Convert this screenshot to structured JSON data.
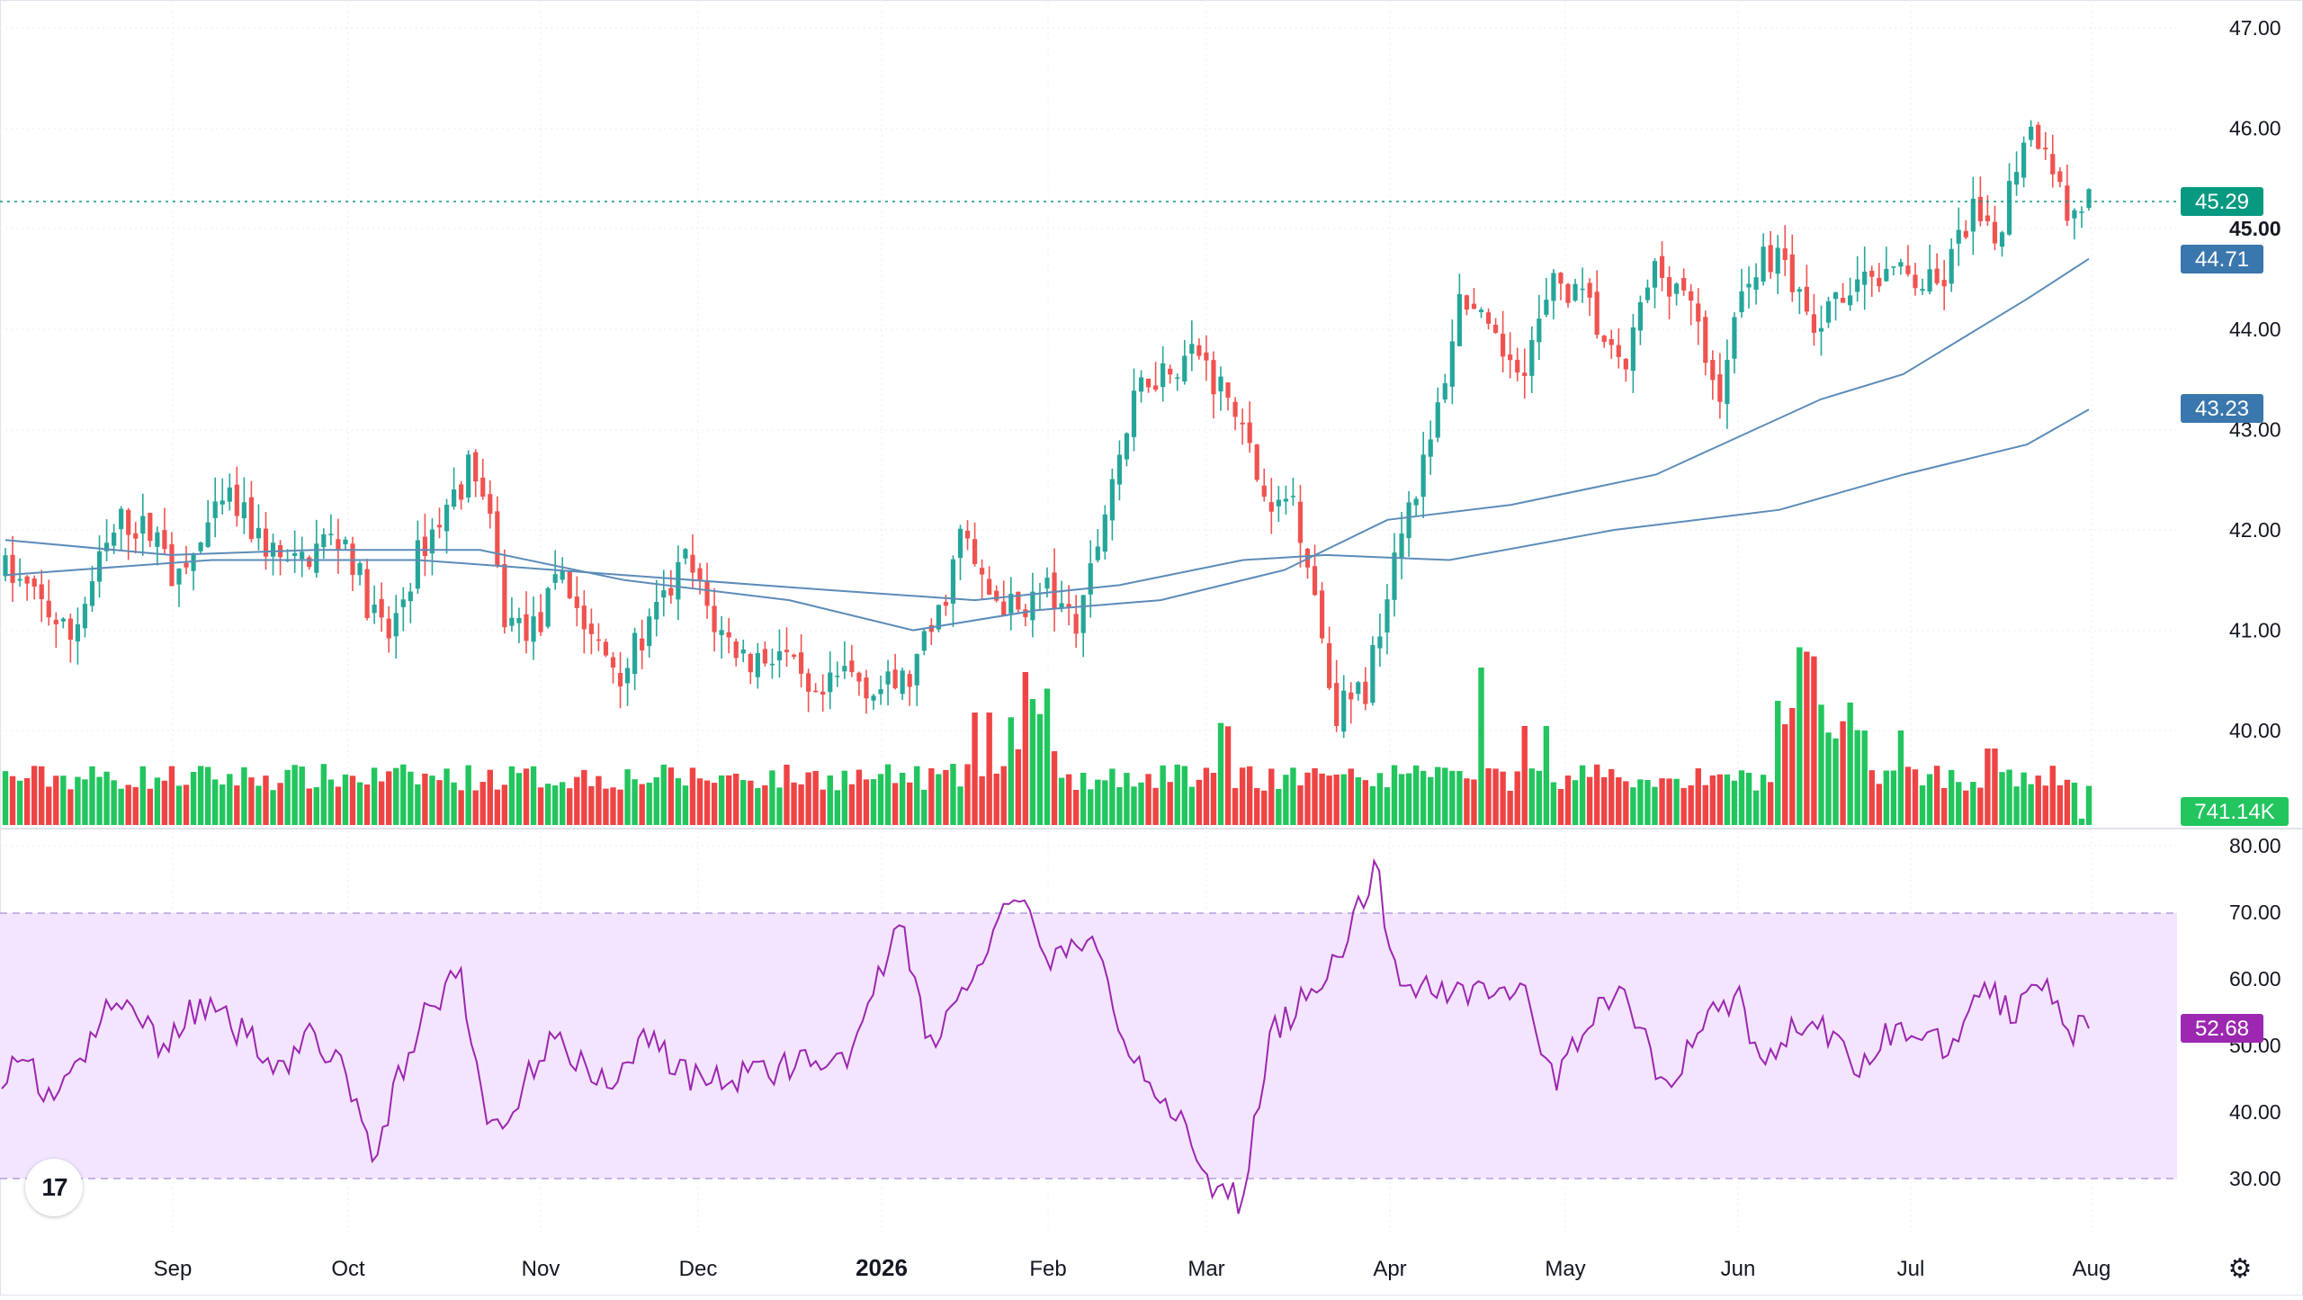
{
  "chart_data": {
    "type": "candlestick",
    "price_axis": {
      "ticks": [
        "47.00",
        "46.00",
        "45.00",
        "44.00",
        "43.00",
        "42.00",
        "41.00",
        "40.00"
      ],
      "range": [
        39.0,
        47.3
      ]
    },
    "time_axis": {
      "labels": [
        "Sep",
        "Oct",
        "Nov",
        "Dec",
        "2026",
        "Feb",
        "Mar",
        "Apr",
        "May",
        "Jun",
        "Jul",
        "Aug"
      ],
      "bold_label": "2026"
    },
    "last_price": "45.29",
    "moving_averages": [
      {
        "value_label": "44.71",
        "color": "#2962ff",
        "line_color": "#5b8cb8"
      },
      {
        "value_label": "43.23",
        "color": "#2962ff",
        "line_color": "#5b8cb8"
      }
    ],
    "volume": {
      "last_label": "741.14K"
    },
    "rsi": {
      "ticks": [
        "80.00",
        "70.00",
        "60.00",
        "50.00",
        "40.00",
        "30.00"
      ],
      "range": [
        22,
        82
      ],
      "band": [
        30,
        70
      ],
      "last_label": "52.68",
      "key_points": [
        [
          0,
          46
        ],
        [
          14,
          48
        ],
        [
          20,
          42
        ],
        [
          40,
          48
        ],
        [
          50,
          55
        ],
        [
          65,
          56
        ],
        [
          75,
          50
        ],
        [
          95,
          56
        ],
        [
          115,
          52
        ],
        [
          135,
          47
        ],
        [
          150,
          52
        ],
        [
          165,
          45
        ],
        [
          180,
          33
        ],
        [
          190,
          45
        ],
        [
          205,
          56
        ],
        [
          220,
          60
        ],
        [
          233,
          38
        ],
        [
          245,
          40
        ],
        [
          265,
          53
        ],
        [
          285,
          44
        ],
        [
          300,
          47
        ],
        [
          310,
          52
        ],
        [
          330,
          45
        ],
        [
          355,
          45
        ],
        [
          385,
          48
        ],
        [
          395,
          44
        ],
        [
          415,
          53
        ],
        [
          430,
          70
        ],
        [
          445,
          50
        ],
        [
          470,
          62
        ],
        [
          485,
          72
        ],
        [
          505,
          63
        ],
        [
          525,
          65
        ],
        [
          540,
          50
        ],
        [
          560,
          42
        ],
        [
          580,
          28
        ],
        [
          595,
          27
        ],
        [
          610,
          52
        ],
        [
          625,
          57
        ],
        [
          640,
          63
        ],
        [
          660,
          76
        ],
        [
          670,
          60
        ],
        [
          690,
          58
        ],
        [
          710,
          59
        ],
        [
          730,
          58
        ],
        [
          745,
          44
        ],
        [
          765,
          56
        ],
        [
          780,
          57
        ],
        [
          800,
          42
        ],
        [
          815,
          54
        ],
        [
          835,
          57
        ],
        [
          845,
          46
        ],
        [
          860,
          53
        ],
        [
          875,
          52
        ],
        [
          890,
          46
        ],
        [
          905,
          52
        ],
        [
          920,
          52
        ],
        [
          935,
          50
        ],
        [
          950,
          59
        ],
        [
          965,
          55
        ],
        [
          980,
          61
        ],
        [
          995,
          52
        ],
        [
          1002,
          53
        ]
      ]
    },
    "candles_generated": true,
    "colors": {
      "up": "#26a69a",
      "down": "#ef5350",
      "up_volume": "#22c55e",
      "down_volume": "#ef4444",
      "last_price_badge": "#089981",
      "ma_badge": "#2962ff",
      "volume_badge": "#22c55e",
      "rsi_line": "#9c27b0",
      "rsi_band": "#e9d5ff"
    }
  }
}
